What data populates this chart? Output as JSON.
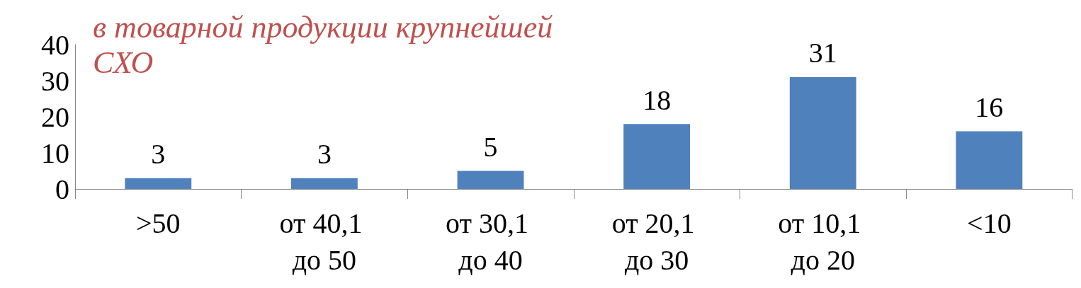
{
  "chart_data": {
    "type": "bar",
    "title": "в товарной продукции крупнейшей\nСХО",
    "categories": [
      ">50",
      "от 40,1 до 50",
      "от 30,1 до 40",
      "от 20,1 до 30",
      "от 10,1 до 20",
      "<10"
    ],
    "values": [
      3,
      3,
      5,
      18,
      31,
      16
    ],
    "color": "#4f81bd",
    "ylim": [
      0,
      40
    ],
    "yticks": [
      0,
      10,
      20,
      30,
      40
    ],
    "data_labels": true,
    "grid": false
  }
}
